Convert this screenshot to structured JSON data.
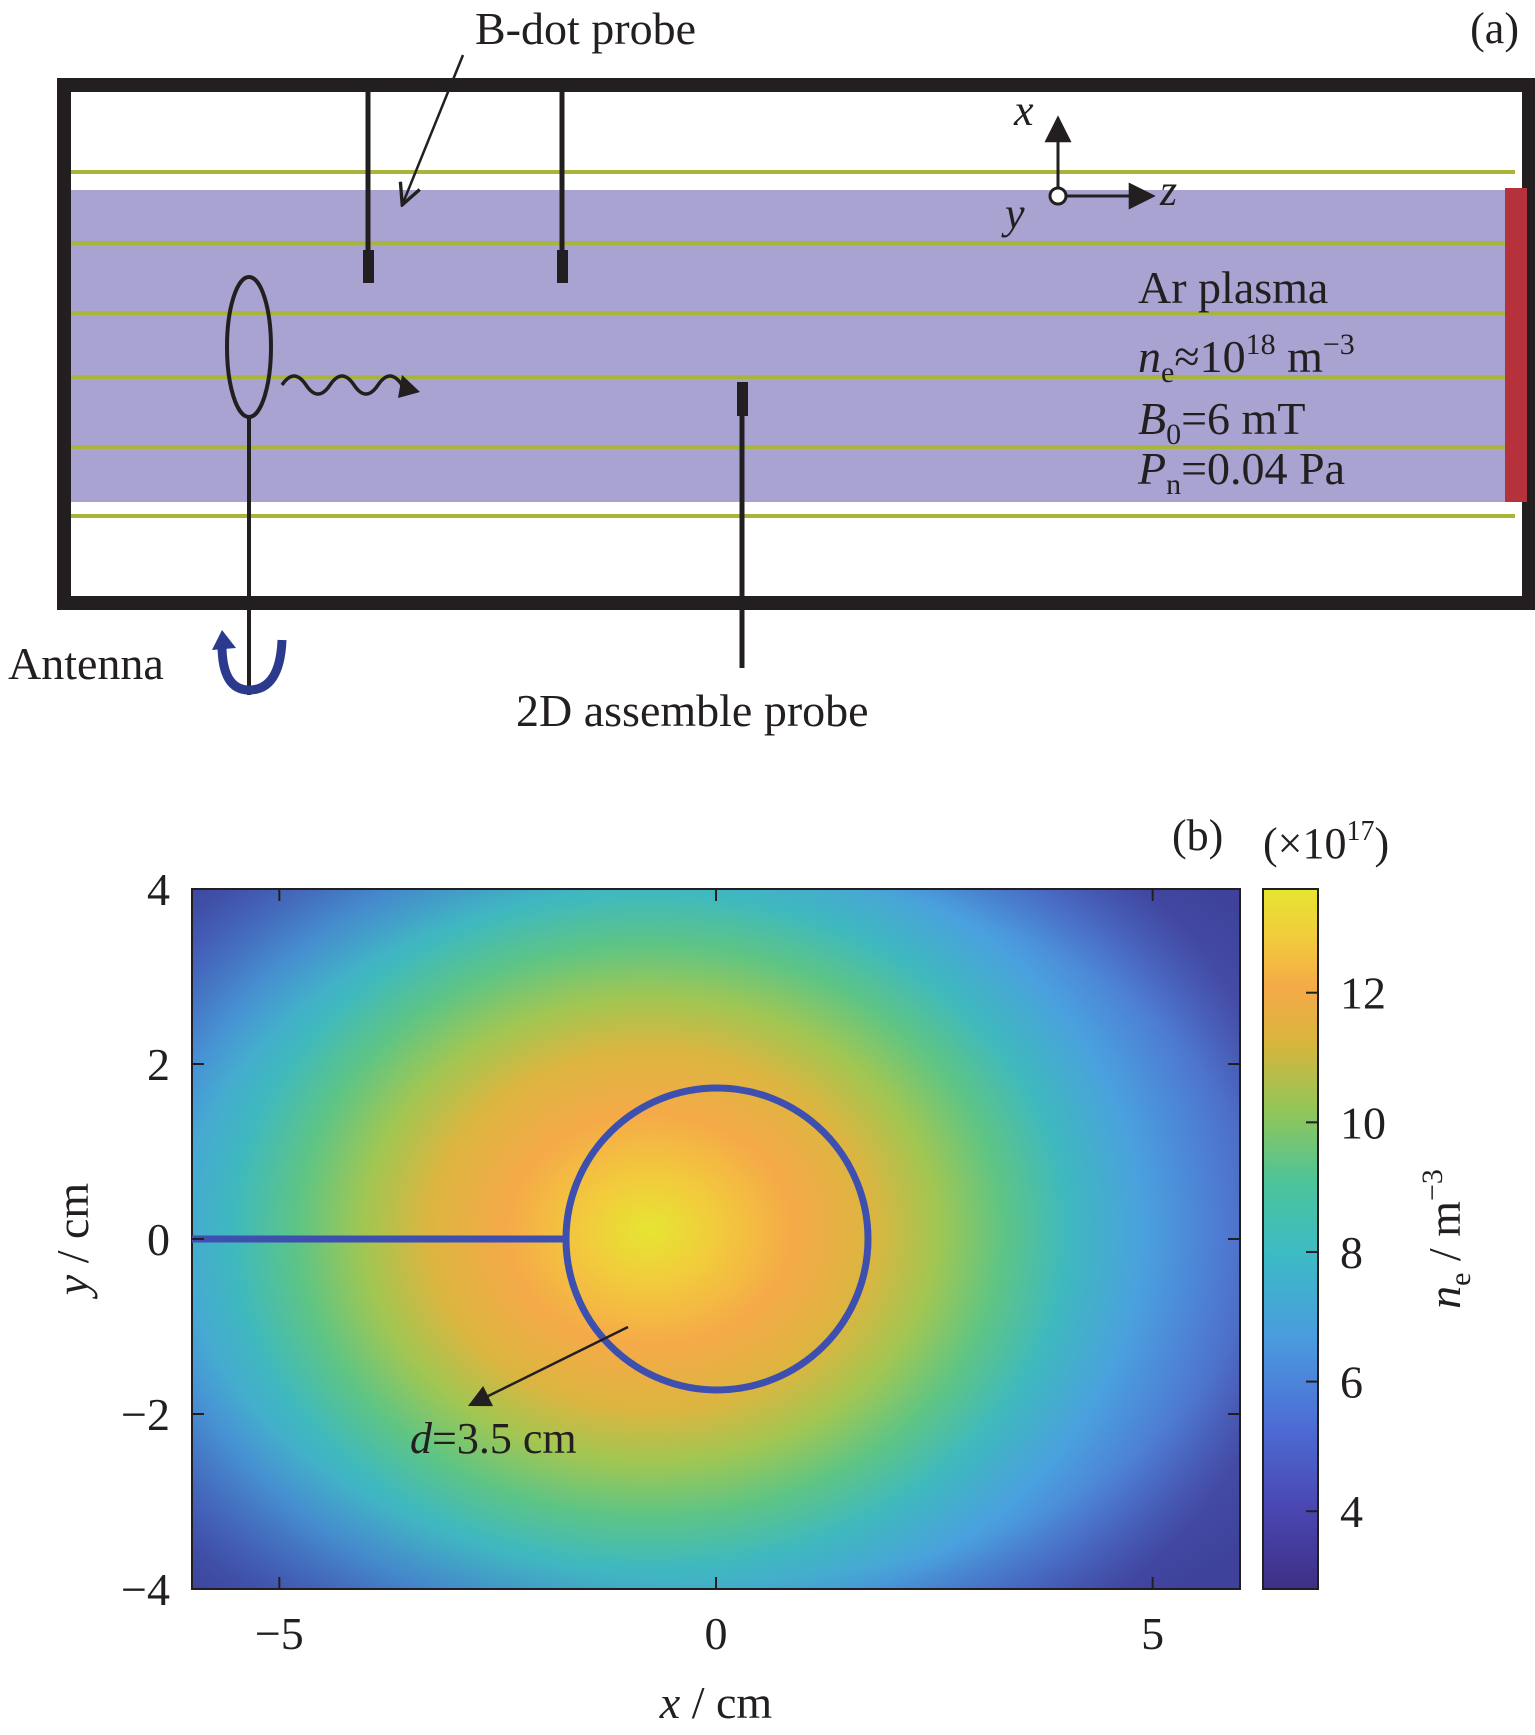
{
  "panel_a": {
    "panel_label": "(a)",
    "bdot_label": "B-dot probe",
    "antenna_label": "Antenna",
    "assemble_label": "2D assemble probe",
    "axis_x": "x",
    "axis_y": "y",
    "axis_z": "z",
    "plasma_title": "Ar plasma",
    "ne_sym": "n",
    "ne_sub": "e",
    "ne_mid": "≈10",
    "ne_exp": "18",
    "ne_unit": " m",
    "ne_unit_exp": "−3",
    "b_sym": "B",
    "b_sub": "0",
    "b_val": "=6 mT",
    "p_sym": "P",
    "p_sub": "n",
    "p_val": "=0.04 Pa",
    "colors": {
      "plasma": "#a8a3d1",
      "field_lines": "#a8b43a",
      "end_plate": "#b5323c",
      "chamber": "#231f20"
    }
  },
  "panel_b": {
    "panel_label": "(b)",
    "xlabel_sym": "x",
    "xlabel_unit": " / cm",
    "ylabel_sym": "y",
    "ylabel_unit": " / cm",
    "cbar_mult": "(×10",
    "cbar_mult_exp": "17",
    "cbar_mult_close": ")",
    "cbar_label_sym": "n",
    "cbar_label_sub": "e",
    "cbar_label_unit": " / m",
    "cbar_label_exp": "−3",
    "annotation_sym": "d",
    "annotation_val": "=3.5 cm",
    "x_ticks": [
      "−5",
      "0",
      "5"
    ],
    "y_ticks": [
      "4",
      "2",
      "0",
      "−2",
      "−4"
    ],
    "cbar_ticks": [
      "12",
      "10",
      "8",
      "6",
      "4"
    ],
    "loop_color": "#3d50b0"
  },
  "chart_data": {
    "type": "heatmap",
    "x_range": [
      -6,
      6
    ],
    "y_range": [
      -4,
      4
    ],
    "x_ticks": [
      -5,
      0,
      5
    ],
    "y_ticks": [
      -4,
      -2,
      0,
      2,
      4
    ],
    "colorbar_range": [
      2.8,
      13.6
    ],
    "colorbar_ticks": [
      4,
      6,
      8,
      10,
      12
    ],
    "colormap": "parula",
    "peak_value": 13.5,
    "peak_location": [
      -0.8,
      0.2
    ],
    "loop_diameter": 3.5,
    "loop_center": [
      0,
      0
    ]
  }
}
